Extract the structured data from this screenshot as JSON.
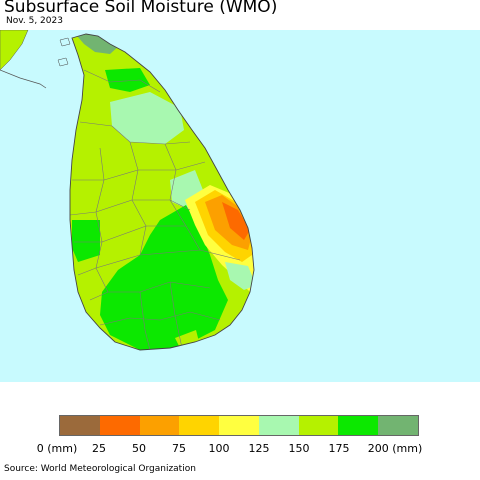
{
  "header": {
    "title": "Subsurface Soil Moisture (WMO)",
    "date": "Nov. 5, 2023"
  },
  "map": {
    "ocean_color": "#c8fafe",
    "region": "Sri Lanka",
    "zones": [
      {
        "name": "west-coast",
        "color": "#b5f100"
      },
      {
        "name": "central-light",
        "color": "#a8f8b0"
      },
      {
        "name": "east-dry",
        "color": "#fca000"
      },
      {
        "name": "east-driest",
        "color": "#fd6a00"
      },
      {
        "name": "south-wet",
        "color": "#0ce800"
      }
    ]
  },
  "legend": {
    "colors": [
      "#9b6a3b",
      "#fd6a00",
      "#fca000",
      "#ffd400",
      "#ffff40",
      "#a8f8b0",
      "#b5f100",
      "#0ce800",
      "#72b471"
    ],
    "ticks": [
      "0 (mm)",
      "25",
      "50",
      "75",
      "100",
      "125",
      "150",
      "175",
      "200 (mm)"
    ]
  },
  "footer": {
    "source": "Source: World Meteorological Organization"
  }
}
